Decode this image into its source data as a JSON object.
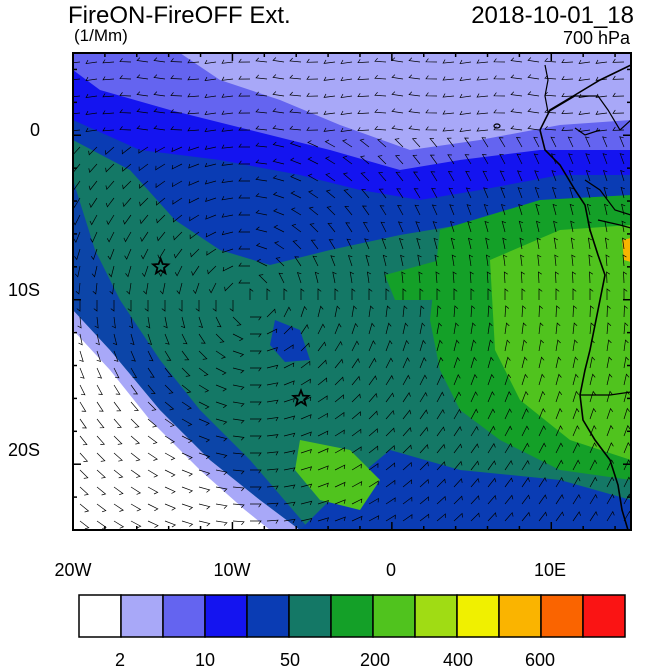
{
  "header": {
    "title": "FireON-FireOFF Ext.",
    "datetime": "2018-10-01_18",
    "units": "(1/Mm)",
    "level": "700 hPa"
  },
  "map": {
    "lat_labels": [
      "0",
      "10S",
      "20S"
    ],
    "lon_labels": [
      "20W",
      "10W",
      "0",
      "10E"
    ],
    "extent": {
      "lon_min": -20,
      "lon_max": 15,
      "lat_min": -24,
      "lat_max": 5
    },
    "markers": [
      {
        "name": "star-1",
        "lon": -14.5,
        "lat": -8
      },
      {
        "name": "star-2",
        "lon": -5.7,
        "lat": -16
      }
    ]
  },
  "colorbar": {
    "colors": [
      "#ffffff",
      "#a8a8f8",
      "#6464f0",
      "#1414f0",
      "#0a3cb4",
      "#147866",
      "#14a028",
      "#50c31e",
      "#a0dc14",
      "#f0f000",
      "#fab400",
      "#fa6400",
      "#fa1414"
    ],
    "labels": [
      "2",
      "10",
      "50",
      "200",
      "400",
      "600"
    ]
  }
}
